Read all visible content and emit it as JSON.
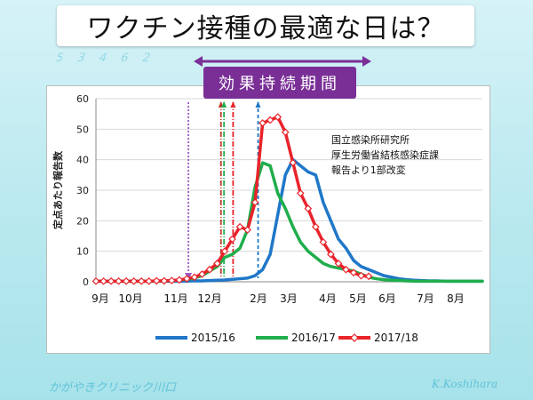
{
  "slide": {
    "title": "ワクチン接種の最適な日は？",
    "banner": "効果持続期間",
    "footer_left": "かがやきクリニック川口",
    "footer_right": "K.Koshihara",
    "decoration_text": "5 3 4 6 2"
  },
  "chart_data": {
    "type": "line",
    "ylabel": "定点あたり報告数",
    "ylim": [
      0,
      60
    ],
    "yticks": [
      0,
      10,
      20,
      30,
      40,
      50,
      60
    ],
    "month_labels": [
      "9月",
      "10月",
      "11月",
      "12月",
      "2月",
      "3月",
      "4月",
      "5月",
      "6月",
      "7月",
      "8月"
    ],
    "note": [
      "国立感染所研究所",
      "厚生労働省結核感染症課",
      "報告より1部改変"
    ],
    "legend_position": "bottom",
    "weeks": 52,
    "series": [
      {
        "name": "2015/16",
        "color": "#1f77c8",
        "values": [
          0.2,
          0.2,
          0.2,
          0.2,
          0.2,
          0.2,
          0.2,
          0.2,
          0.2,
          0.2,
          0.2,
          0.2,
          0.2,
          0.3,
          0.3,
          0.4,
          0.5,
          0.6,
          0.8,
          1.0,
          1.2,
          2.0,
          4.0,
          9.0,
          22.0,
          35.0,
          40.0,
          38.0,
          36.0,
          35.0,
          26.0,
          20.0,
          14.0,
          11.0,
          7.0,
          5.0,
          4.0,
          3.0,
          2.0,
          1.5,
          1.0,
          0.7,
          0.5,
          0.4,
          0.3,
          0.3,
          0.2,
          0.2,
          0.2,
          0.2,
          0.2,
          0.2
        ]
      },
      {
        "name": "2016/17",
        "color": "#1fae4c",
        "values": [
          0.2,
          0.2,
          0.2,
          0.2,
          0.2,
          0.2,
          0.2,
          0.2,
          0.2,
          0.3,
          0.4,
          0.6,
          0.8,
          1.2,
          2.0,
          3.5,
          5.0,
          8.0,
          9.0,
          11.0,
          17.0,
          31.0,
          39.0,
          38.0,
          29.0,
          24.0,
          18.0,
          13.0,
          10.0,
          8.0,
          6.0,
          5.0,
          4.5,
          4.0,
          3.5,
          2.5,
          1.5,
          1.0,
          0.7,
          0.5,
          0.4,
          0.3,
          0.2,
          0.2,
          0.2,
          0.2,
          0.2,
          0.2,
          0.2,
          0.2,
          0.2,
          0.2
        ]
      },
      {
        "name": "2017/18",
        "color": "#e8232a",
        "values": [
          0.2,
          0.2,
          0.2,
          0.2,
          0.2,
          0.2,
          0.2,
          0.2,
          0.3,
          0.3,
          0.4,
          0.6,
          1.0,
          1.5,
          2.5,
          4.0,
          6.0,
          10.0,
          14.0,
          18.0,
          17.0,
          26.0,
          52.0,
          53.0,
          54.0,
          49.0,
          39.0,
          29.0,
          24.0,
          18.0,
          13.0,
          9.0,
          6.0,
          4.0,
          3.0,
          2.0,
          1.8
        ]
      }
    ],
    "markers": [
      {
        "week": 12.2,
        "color": "#9b59c8",
        "style": "dotted"
      },
      {
        "week": 16.5,
        "color": "#c0392b",
        "style": "dashdot"
      },
      {
        "week": 16.9,
        "color": "#1fae4c",
        "style": "dashdot"
      },
      {
        "week": 18.1,
        "color": "#e8232a",
        "style": "dashdot"
      },
      {
        "week": 21.4,
        "color": "#1f77c8",
        "style": "dashed"
      }
    ]
  }
}
